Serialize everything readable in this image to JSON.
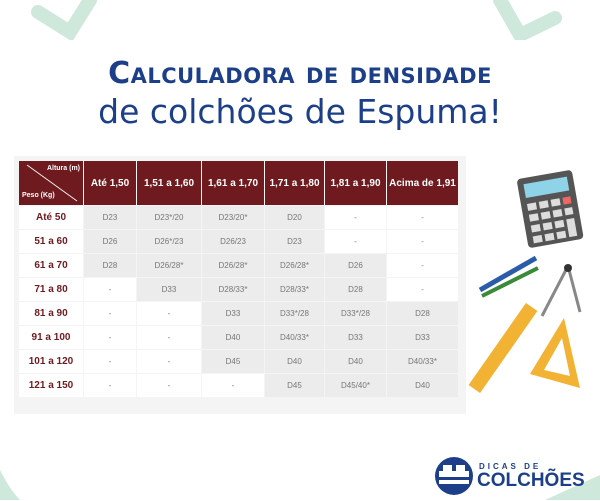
{
  "title": {
    "line1": "Calculadora de densidade",
    "line2": "de colchões de Espuma!"
  },
  "table": {
    "corner_top": "Altura (m)",
    "corner_bottom": "Peso (Kg)",
    "columns": [
      "Até 1,50",
      "1,51 a 1,60",
      "1,61 a 1,70",
      "1,71 a 1,80",
      "1,81 a 1,90",
      "Acima de 1,91"
    ],
    "rows": [
      {
        "label": "Até 50",
        "cells": [
          "D23",
          "D23*/20",
          "D23/20*",
          "D20",
          "-",
          "-"
        ]
      },
      {
        "label": "51 a 60",
        "cells": [
          "D26",
          "D26*/23",
          "D26/23",
          "D23",
          "-",
          "-"
        ]
      },
      {
        "label": "61 a 70",
        "cells": [
          "D28",
          "D26/28*",
          "D26/28*",
          "D26/28*",
          "D26",
          "-"
        ]
      },
      {
        "label": "71 a 80",
        "cells": [
          "-",
          "D33",
          "D28/33*",
          "D28/33*",
          "D28",
          "-"
        ]
      },
      {
        "label": "81 a 90",
        "cells": [
          "-",
          "-",
          "D33",
          "D33*/28",
          "D33*/28",
          "D28"
        ]
      },
      {
        "label": "91 a 100",
        "cells": [
          "-",
          "-",
          "D40",
          "D40/33*",
          "D33",
          "D33"
        ]
      },
      {
        "label": "101 a 120",
        "cells": [
          "-",
          "-",
          "D45",
          "D40",
          "D40",
          "D40/33*"
        ]
      },
      {
        "label": "121 a 150",
        "cells": [
          "-",
          "-",
          "-",
          "D45",
          "D45/40*",
          "D40"
        ]
      }
    ]
  },
  "logo": {
    "line1": "DICAS DE",
    "line2": "COLCHÕES"
  },
  "colors": {
    "title": "#1d3f8a",
    "header": "#6e1a1f",
    "accent_mint": "#cfe8dc"
  },
  "icons": [
    "calculator-icon",
    "pencil-icon",
    "compass-icon",
    "ruler-icon",
    "set-square-icon",
    "bed-logo-icon"
  ]
}
